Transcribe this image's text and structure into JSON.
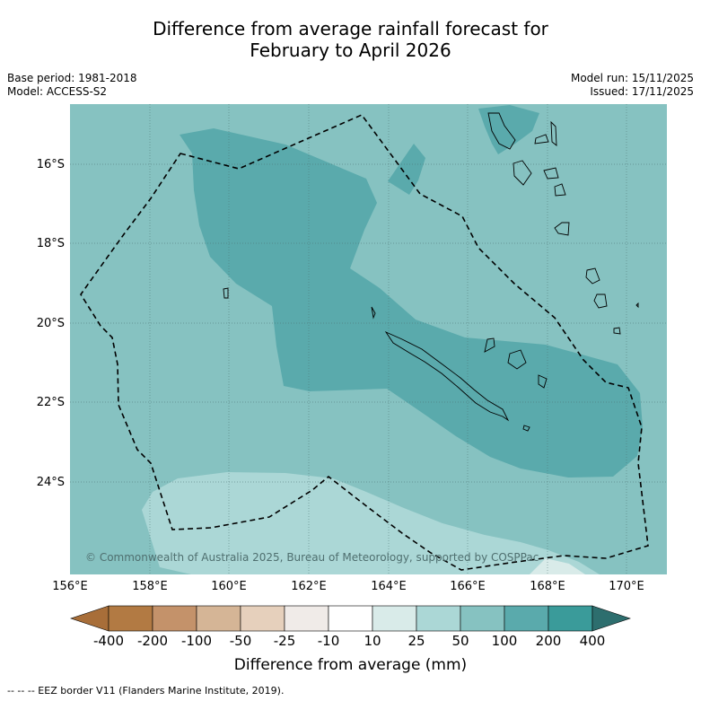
{
  "title": {
    "line1": "Difference from average rainfall forecast for",
    "line2": "February to April 2026"
  },
  "meta": {
    "base_period": "Base period: 1981-2018",
    "model": "Model: ACCESS-S2",
    "model_run": "Model run: 15/11/2025",
    "issued": "Issued: 17/11/2025"
  },
  "map": {
    "lat_labels": [
      "16°S",
      "18°S",
      "20°S",
      "22°S",
      "24°S"
    ],
    "lon_labels": [
      "156°E",
      "158°E",
      "160°E",
      "162°E",
      "164°E",
      "166°E",
      "168°E",
      "170°E"
    ],
    "copyright": "© Commonwealth of Australia 2025, Bureau of Meteorology, supported by COSPPac"
  },
  "legend": {
    "tick_labels": [
      "-400",
      "-200",
      "-100",
      "-50",
      "-25",
      "-10",
      "10",
      "25",
      "50",
      "100",
      "200",
      "400"
    ],
    "colors": [
      "#a86e39",
      "#b27a43",
      "#c4926a",
      "#d5b596",
      "#e6d0bc",
      "#f0ebe8",
      "#ffffff",
      "#d9ebe9",
      "#abd7d6",
      "#86c2c1",
      "#5aaaac",
      "#3a9b9a",
      "#2d6e6e"
    ],
    "title": "Difference from average (mm)"
  },
  "footnote": "--  --  -- EEZ border V11 (Flanders Marine Institute, 2019)."
}
